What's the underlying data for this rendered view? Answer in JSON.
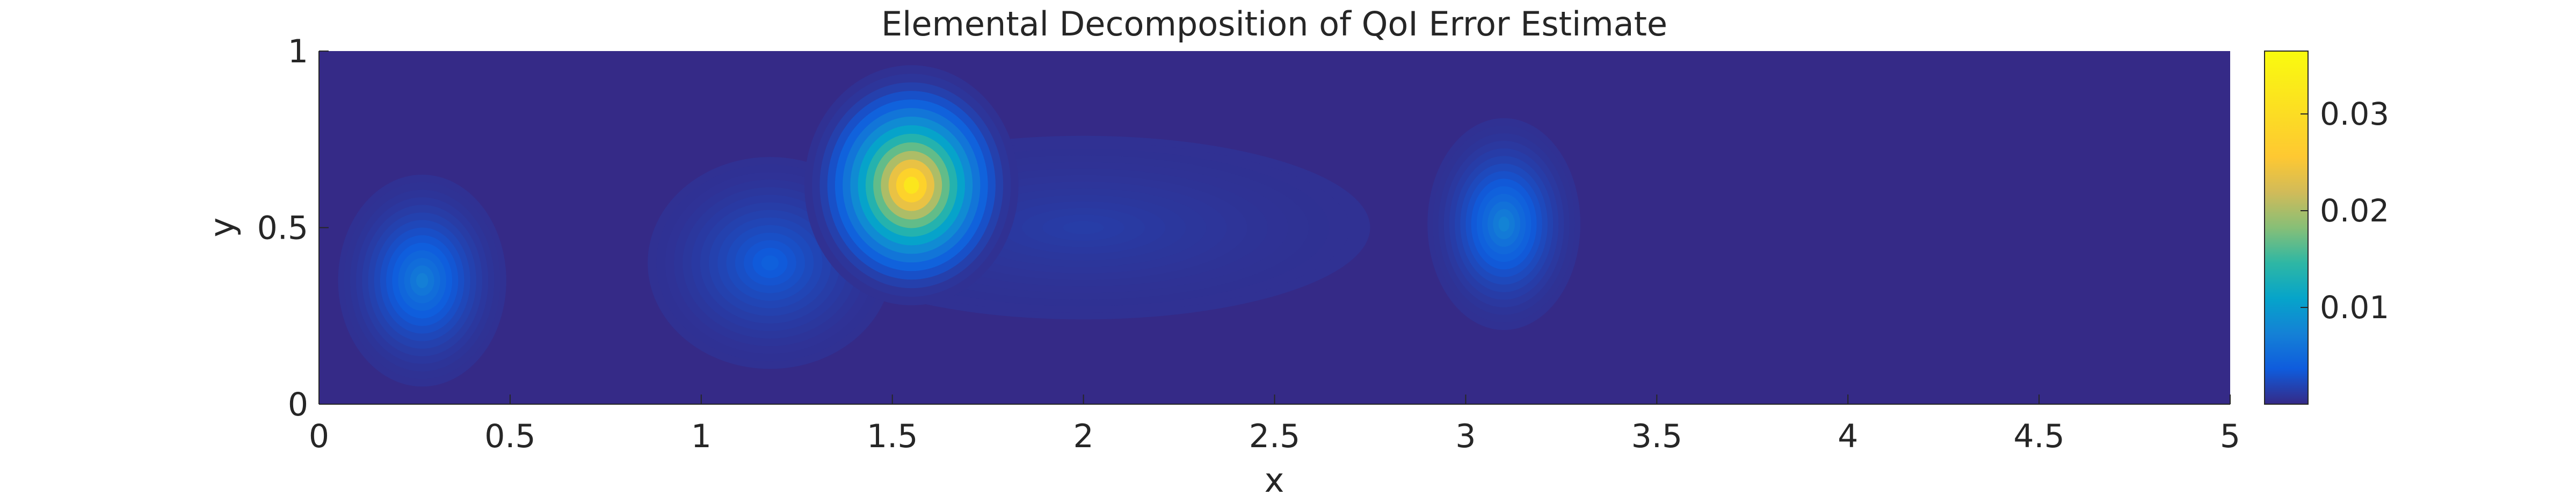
{
  "chart_data": {
    "type": "heatmap",
    "title": "Elemental Decomposition of QoI Error Estimate",
    "xlabel": "x",
    "ylabel": "y",
    "xlim": [
      0,
      5
    ],
    "ylim": [
      0,
      1
    ],
    "x_ticks": [
      "0",
      "0.5",
      "1",
      "1.5",
      "2",
      "2.5",
      "3",
      "3.5",
      "4",
      "4.5",
      "5"
    ],
    "x_tick_values": [
      0,
      0.5,
      1,
      1.5,
      2,
      2.5,
      3,
      3.5,
      4,
      4.5,
      5
    ],
    "y_ticks": [
      "0",
      "0.5",
      "1"
    ],
    "y_tick_values": [
      0,
      0.5,
      1
    ],
    "colorbar": {
      "colormap": "parula",
      "range": [
        0,
        0.0365
      ],
      "ticks": [
        "0.01",
        "0.02",
        "0.03"
      ],
      "tick_values": [
        0.01,
        0.02,
        0.03
      ]
    },
    "background_value": 0.0005,
    "features": [
      {
        "name": "lobe-left",
        "x": 0.27,
        "y": 0.35,
        "peak": 0.008
      },
      {
        "name": "lobe-mid-low",
        "x": 1.18,
        "y": 0.4,
        "peak": 0.0045
      },
      {
        "name": "hotspot",
        "x": 1.55,
        "y": 0.62,
        "peak": 0.0365
      },
      {
        "name": "lobe-right",
        "x": 3.1,
        "y": 0.51,
        "peak": 0.0085
      },
      {
        "name": "wake-band",
        "x": 2.0,
        "y": 0.5,
        "peak": 0.0015
      }
    ]
  }
}
